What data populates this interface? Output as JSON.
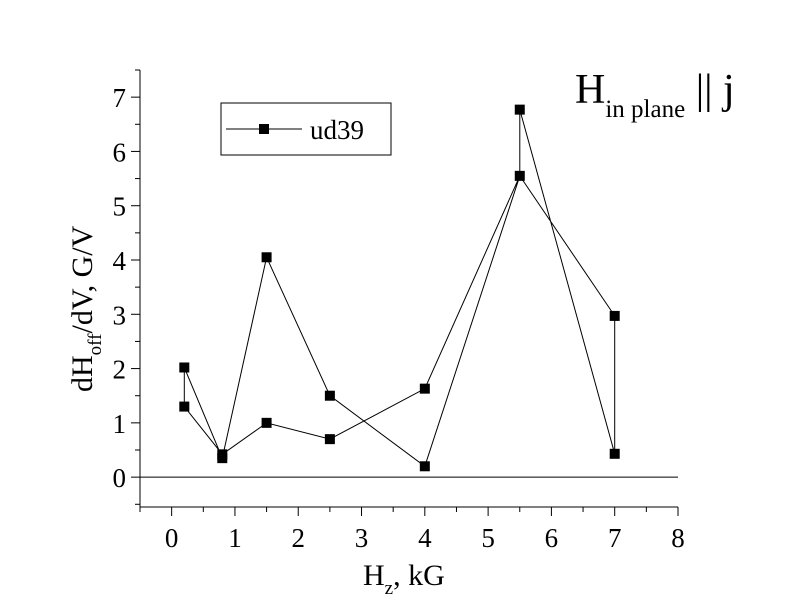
{
  "chart_data": {
    "type": "line",
    "title_main": "H",
    "title_sub": "in plane",
    "title_rest": " || j",
    "xlabel_main": "H",
    "xlabel_sub": "z",
    "xlabel_rest": ", kG",
    "ylabel_main": "dH",
    "ylabel_sub": "off",
    "ylabel_rest": "/dV, G/V",
    "xlim": [
      -0.5,
      8
    ],
    "ylim": [
      -0.55,
      7.5
    ],
    "xticks": [
      0,
      1,
      2,
      3,
      4,
      5,
      6,
      7,
      8
    ],
    "yticks": [
      0,
      1,
      2,
      3,
      4,
      5,
      6,
      7
    ],
    "grid": false,
    "legend_position": "top-left",
    "zero_line": true,
    "series": [
      {
        "name": "ud39",
        "marker": "square",
        "color": "#000000",
        "x": [
          0.2,
          0.2,
          0.8,
          1.5,
          2.5,
          4.0,
          5.5,
          5.5,
          7.0,
          7.0,
          5.5,
          4.0,
          2.5,
          1.5,
          0.8,
          0.2
        ],
        "y": [
          1.3,
          2.02,
          0.35,
          4.05,
          1.5,
          0.2,
          5.55,
          6.77,
          0.43,
          2.97,
          5.55,
          1.63,
          0.7,
          1.0,
          0.42,
          1.3
        ]
      }
    ]
  }
}
